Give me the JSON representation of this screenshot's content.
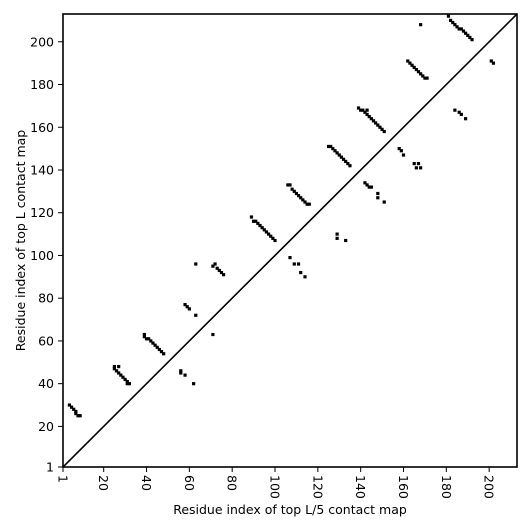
{
  "chart_data": {
    "type": "scatter",
    "title": "",
    "xlabel": "Residue index of top L/5 contact map",
    "ylabel": "Residue index of top L contact map",
    "xlim": [
      1,
      213
    ],
    "ylim": [
      1,
      213
    ],
    "x_ticks": [
      1,
      20,
      40,
      60,
      80,
      100,
      120,
      140,
      160,
      180,
      200
    ],
    "y_ticks": [
      1,
      20,
      40,
      60,
      80,
      100,
      120,
      140,
      160,
      180,
      200
    ],
    "diagonal": true,
    "grid": false,
    "series": [
      {
        "values": [
          [
            4,
            30
          ],
          [
            5,
            29
          ],
          [
            6,
            28
          ],
          [
            7,
            27
          ],
          [
            7,
            26
          ],
          [
            8,
            25
          ],
          [
            9,
            25
          ],
          [
            25,
            48
          ],
          [
            25,
            47
          ],
          [
            26,
            46
          ],
          [
            27,
            45
          ],
          [
            28,
            44
          ],
          [
            29,
            43
          ],
          [
            30,
            42
          ],
          [
            31,
            41
          ],
          [
            31,
            40
          ],
          [
            32,
            40
          ],
          [
            27,
            48
          ],
          [
            39,
            63
          ],
          [
            39,
            62
          ],
          [
            40,
            61
          ],
          [
            41,
            61
          ],
          [
            42,
            60
          ],
          [
            43,
            59
          ],
          [
            44,
            58
          ],
          [
            45,
            57
          ],
          [
            46,
            56
          ],
          [
            47,
            55
          ],
          [
            48,
            54
          ],
          [
            56,
            46
          ],
          [
            56,
            45
          ],
          [
            58,
            44
          ],
          [
            62,
            40
          ],
          [
            58,
            77
          ],
          [
            59,
            76
          ],
          [
            60,
            75
          ],
          [
            63,
            72
          ],
          [
            63,
            96
          ],
          [
            71,
            95
          ],
          [
            72,
            96
          ],
          [
            73,
            94
          ],
          [
            74,
            93
          ],
          [
            75,
            92
          ],
          [
            76,
            91
          ],
          [
            71,
            63
          ],
          [
            89,
            118
          ],
          [
            90,
            116
          ],
          [
            91,
            116
          ],
          [
            92,
            115
          ],
          [
            93,
            114
          ],
          [
            94,
            113
          ],
          [
            95,
            112
          ],
          [
            96,
            111
          ],
          [
            97,
            110
          ],
          [
            98,
            109
          ],
          [
            99,
            108
          ],
          [
            100,
            107
          ],
          [
            106,
            133
          ],
          [
            107,
            133
          ],
          [
            108,
            131
          ],
          [
            109,
            130
          ],
          [
            110,
            129
          ],
          [
            111,
            128
          ],
          [
            112,
            127
          ],
          [
            113,
            126
          ],
          [
            114,
            125
          ],
          [
            115,
            124
          ],
          [
            116,
            124
          ],
          [
            107,
            99
          ],
          [
            109,
            96
          ],
          [
            111,
            96
          ],
          [
            112,
            92
          ],
          [
            114,
            90
          ],
          [
            125,
            151
          ],
          [
            126,
            151
          ],
          [
            127,
            150
          ],
          [
            128,
            149
          ],
          [
            129,
            148
          ],
          [
            130,
            147
          ],
          [
            131,
            146
          ],
          [
            132,
            145
          ],
          [
            133,
            144
          ],
          [
            134,
            143
          ],
          [
            135,
            142
          ],
          [
            129,
            110
          ],
          [
            129,
            108
          ],
          [
            133,
            107
          ],
          [
            139,
            169
          ],
          [
            140,
            168
          ],
          [
            141,
            168
          ],
          [
            142,
            167
          ],
          [
            143,
            166
          ],
          [
            144,
            165
          ],
          [
            145,
            164
          ],
          [
            146,
            163
          ],
          [
            147,
            162
          ],
          [
            148,
            161
          ],
          [
            149,
            160
          ],
          [
            150,
            159
          ],
          [
            151,
            158
          ],
          [
            143,
            168
          ],
          [
            142,
            134
          ],
          [
            143,
            133
          ],
          [
            144,
            132
          ],
          [
            145,
            132
          ],
          [
            148,
            129
          ],
          [
            148,
            127
          ],
          [
            151,
            125
          ],
          [
            158,
            150
          ],
          [
            159,
            149
          ],
          [
            160,
            147
          ],
          [
            165,
            143
          ],
          [
            166,
            141
          ],
          [
            167,
            143
          ],
          [
            168,
            141
          ],
          [
            162,
            191
          ],
          [
            163,
            190
          ],
          [
            164,
            189
          ],
          [
            165,
            188
          ],
          [
            166,
            187
          ],
          [
            167,
            186
          ],
          [
            168,
            185
          ],
          [
            169,
            184
          ],
          [
            170,
            183
          ],
          [
            171,
            183
          ],
          [
            168,
            208
          ],
          [
            181,
            212
          ],
          [
            182,
            210
          ],
          [
            183,
            209
          ],
          [
            184,
            208
          ],
          [
            185,
            207
          ],
          [
            186,
            206
          ],
          [
            187,
            206
          ],
          [
            188,
            205
          ],
          [
            189,
            204
          ],
          [
            190,
            203
          ],
          [
            191,
            202
          ],
          [
            192,
            201
          ],
          [
            184,
            168
          ],
          [
            186,
            167
          ],
          [
            187,
            166
          ],
          [
            189,
            164
          ],
          [
            201,
            191
          ],
          [
            202,
            190
          ]
        ]
      }
    ]
  }
}
